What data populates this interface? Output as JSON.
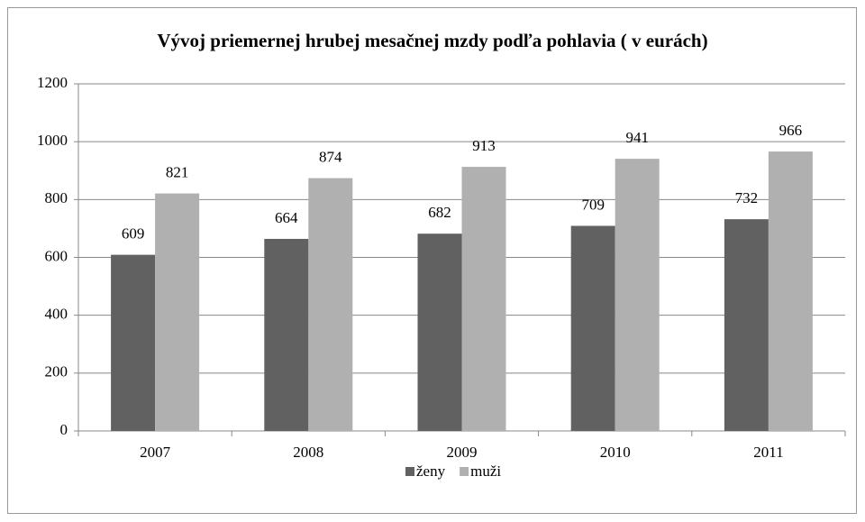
{
  "chart_data": {
    "type": "bar",
    "title": "Vývoj priemernej hrubej mesačnej mzdy podľa pohlavia  ( v eurách)",
    "categories": [
      "2007",
      "2008",
      "2009",
      "2010",
      "2011"
    ],
    "series": [
      {
        "name": "ženy",
        "color": "#616161",
        "values": [
          609,
          664,
          682,
          709,
          732
        ]
      },
      {
        "name": "muži",
        "color": "#b0b0b0",
        "values": [
          821,
          874,
          913,
          941,
          966
        ]
      }
    ],
    "ylim": [
      0,
      1200
    ],
    "yticks": [
      0,
      200,
      400,
      600,
      800,
      1000,
      1200
    ],
    "grid": true,
    "legend": "bottom"
  }
}
